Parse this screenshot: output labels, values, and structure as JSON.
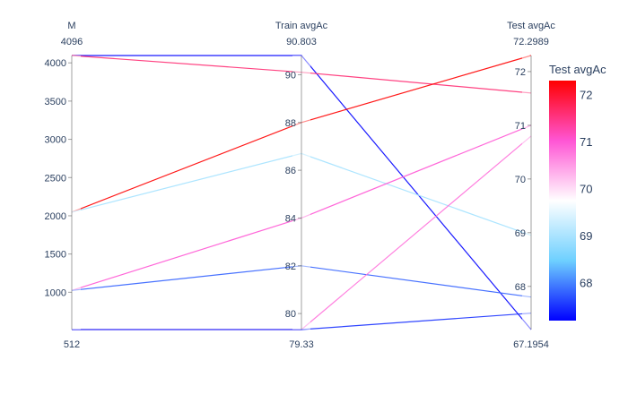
{
  "chart_data": {
    "type": "parallel_coordinates",
    "dimensions": [
      {
        "label": "M",
        "range": [
          512,
          4096
        ],
        "min_label": "512",
        "max_label": "4096",
        "ticks": [
          1000,
          1500,
          2000,
          2500,
          3000,
          3500,
          4000
        ],
        "tick_labels": [
          "1000",
          "1500",
          "2000",
          "2500",
          "3000",
          "3500",
          "4000"
        ]
      },
      {
        "label": "Train avgAc",
        "range": [
          79.33,
          90.803
        ],
        "min_label": "79.33",
        "max_label": "90.803",
        "ticks": [
          80,
          82,
          84,
          86,
          88,
          90
        ],
        "tick_labels": [
          "80",
          "82",
          "84",
          "86",
          "88",
          "90"
        ]
      },
      {
        "label": "Test avgAc",
        "range": [
          67.1954,
          72.2989
        ],
        "min_label": "67.1954",
        "max_label": "72.2989",
        "ticks": [
          68,
          69,
          70,
          71,
          72
        ],
        "tick_labels": [
          "68",
          "69",
          "70",
          "71",
          "72"
        ]
      }
    ],
    "rows": [
      [
        4096,
        90.803,
        67.1954
      ],
      [
        4096,
        90.1,
        71.6
      ],
      [
        2048,
        88.0,
        72.2989
      ],
      [
        2048,
        86.7,
        68.95
      ],
      [
        1024,
        84.0,
        71.0
      ],
      [
        1024,
        82.0,
        67.8
      ],
      [
        512,
        79.33,
        70.8
      ],
      [
        512,
        79.33,
        67.5
      ]
    ],
    "color_by": "Test avgAc",
    "colorbar": {
      "title": "Test avgAc",
      "range": [
        67.1954,
        72.2989
      ],
      "ticks": [
        68,
        69,
        70,
        71,
        72
      ],
      "tick_labels": [
        "68",
        "69",
        "70",
        "71",
        "72"
      ],
      "colorscale": [
        "#0000ff",
        "#6ed0ff",
        "#ffffff",
        "#ff55d4",
        "#ff0000"
      ]
    }
  }
}
